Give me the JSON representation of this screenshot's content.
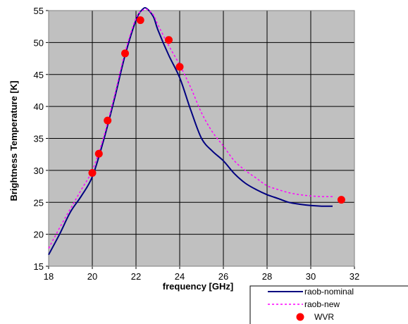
{
  "chart_data": {
    "type": "line",
    "xlabel": "frequency [GHz]",
    "ylabel": "Brightness Temperature [K]",
    "xlim": [
      18,
      32
    ],
    "ylim": [
      15,
      55
    ],
    "x_ticks": [
      "18",
      "20",
      "22",
      "24",
      "26",
      "28",
      "30",
      "32"
    ],
    "y_ticks": [
      "15",
      "20",
      "25",
      "30",
      "35",
      "40",
      "45",
      "50",
      "55"
    ],
    "grid": true,
    "background": "#c0c0c0",
    "legend_position": "bottom-right",
    "series": [
      {
        "name": "raob-nominal",
        "style": "solid",
        "color": "#000080",
        "x": [
          18.0,
          18.5,
          19.0,
          19.5,
          20.0,
          20.5,
          21.0,
          21.5,
          22.0,
          22.3,
          22.5,
          22.8,
          23.0,
          23.5,
          24.0,
          24.5,
          25.0,
          25.5,
          26.0,
          26.5,
          27.0,
          27.5,
          28.0,
          28.5,
          29.0,
          29.5,
          30.0,
          30.5,
          31.0
        ],
        "y": [
          16.8,
          20.0,
          23.5,
          26.0,
          29.0,
          34.5,
          41.0,
          48.0,
          53.5,
          55.2,
          55.3,
          54.0,
          52.0,
          48.0,
          44.5,
          39.5,
          35.0,
          33.0,
          31.5,
          29.5,
          28.0,
          27.0,
          26.2,
          25.6,
          25.0,
          24.7,
          24.5,
          24.4,
          24.4
        ]
      },
      {
        "name": "raob-new",
        "style": "dotted",
        "color": "#ff00ff",
        "x": [
          18.0,
          18.5,
          19.0,
          19.5,
          20.0,
          20.5,
          21.0,
          21.5,
          22.0,
          22.3,
          22.5,
          22.8,
          23.0,
          23.5,
          24.0,
          24.5,
          25.0,
          25.5,
          26.0,
          26.5,
          27.0,
          27.5,
          28.0,
          28.5,
          29.0,
          29.5,
          30.0,
          30.5,
          31.0
        ],
        "y": [
          17.8,
          21.0,
          24.0,
          27.0,
          30.0,
          35.0,
          41.5,
          48.5,
          53.8,
          55.0,
          55.2,
          54.3,
          52.8,
          49.5,
          46.5,
          43.0,
          39.0,
          36.0,
          33.8,
          31.5,
          30.0,
          28.8,
          27.6,
          27.0,
          26.5,
          26.2,
          26.0,
          25.9,
          25.9
        ]
      },
      {
        "name": "WVR",
        "style": "markers",
        "color": "#ff0000",
        "x": [
          20.0,
          20.3,
          20.7,
          21.5,
          22.2,
          23.5,
          24.0,
          31.4
        ],
        "y": [
          29.6,
          32.6,
          37.8,
          48.3,
          53.5,
          50.4,
          46.2,
          25.4
        ]
      }
    ]
  }
}
